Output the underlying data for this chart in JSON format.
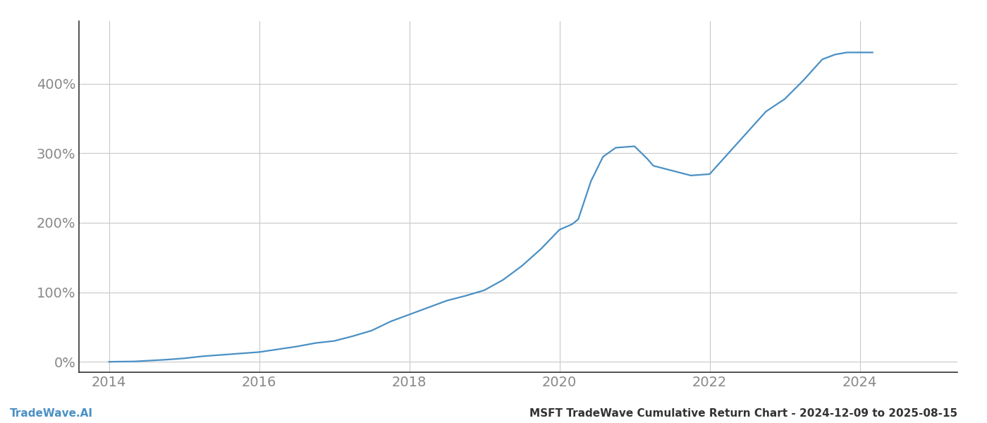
{
  "title": "MSFT TradeWave Cumulative Return Chart - 2024-12-09 to 2025-08-15",
  "watermark": "TradeWave.AI",
  "line_color": "#4a90c4",
  "background_color": "#ffffff",
  "grid_color": "#c8c8c8",
  "x_ticks": [
    2014,
    2016,
    2018,
    2020,
    2022,
    2024
  ],
  "x_data": [
    2014.0,
    2014.08,
    2014.17,
    2014.33,
    2014.5,
    2014.75,
    2015.0,
    2015.25,
    2015.5,
    2015.75,
    2016.0,
    2016.25,
    2016.5,
    2016.75,
    2017.0,
    2017.25,
    2017.5,
    2017.75,
    2018.0,
    2018.25,
    2018.5,
    2018.75,
    2019.0,
    2019.25,
    2019.5,
    2019.75,
    2020.0,
    2020.17,
    2020.25,
    2020.42,
    2020.58,
    2020.75,
    2021.0,
    2021.17,
    2021.25,
    2021.5,
    2021.75,
    2022.0,
    2022.25,
    2022.5,
    2022.75,
    2023.0,
    2023.25,
    2023.5,
    2023.67,
    2023.83,
    2024.0,
    2024.17
  ],
  "y_data": [
    0.0,
    0.2,
    0.3,
    0.5,
    1.5,
    3.0,
    5.0,
    8.0,
    10.0,
    12.0,
    14.0,
    18.0,
    22.0,
    27.0,
    30.0,
    37.0,
    45.0,
    58.0,
    68.0,
    78.0,
    88.0,
    95.0,
    103.0,
    118.0,
    138.0,
    162.0,
    190.0,
    198.0,
    205.0,
    260.0,
    295.0,
    308.0,
    310.0,
    292.0,
    282.0,
    275.0,
    268.0,
    270.0,
    300.0,
    330.0,
    360.0,
    378.0,
    405.0,
    435.0,
    442.0,
    445.0,
    445.0,
    445.0
  ],
  "y_ticks": [
    0,
    100,
    200,
    300,
    400
  ],
  "y_tick_labels": [
    "0%",
    "100%",
    "200%",
    "300%",
    "400%"
  ],
  "ylim": [
    -15,
    490
  ],
  "xlim": [
    2013.6,
    2025.3
  ],
  "line_width": 1.6,
  "title_fontsize": 11,
  "watermark_fontsize": 11,
  "tick_fontsize": 14,
  "tick_color": "#888888",
  "spine_color": "#333333",
  "left_spine": true,
  "bottom_spine": true
}
